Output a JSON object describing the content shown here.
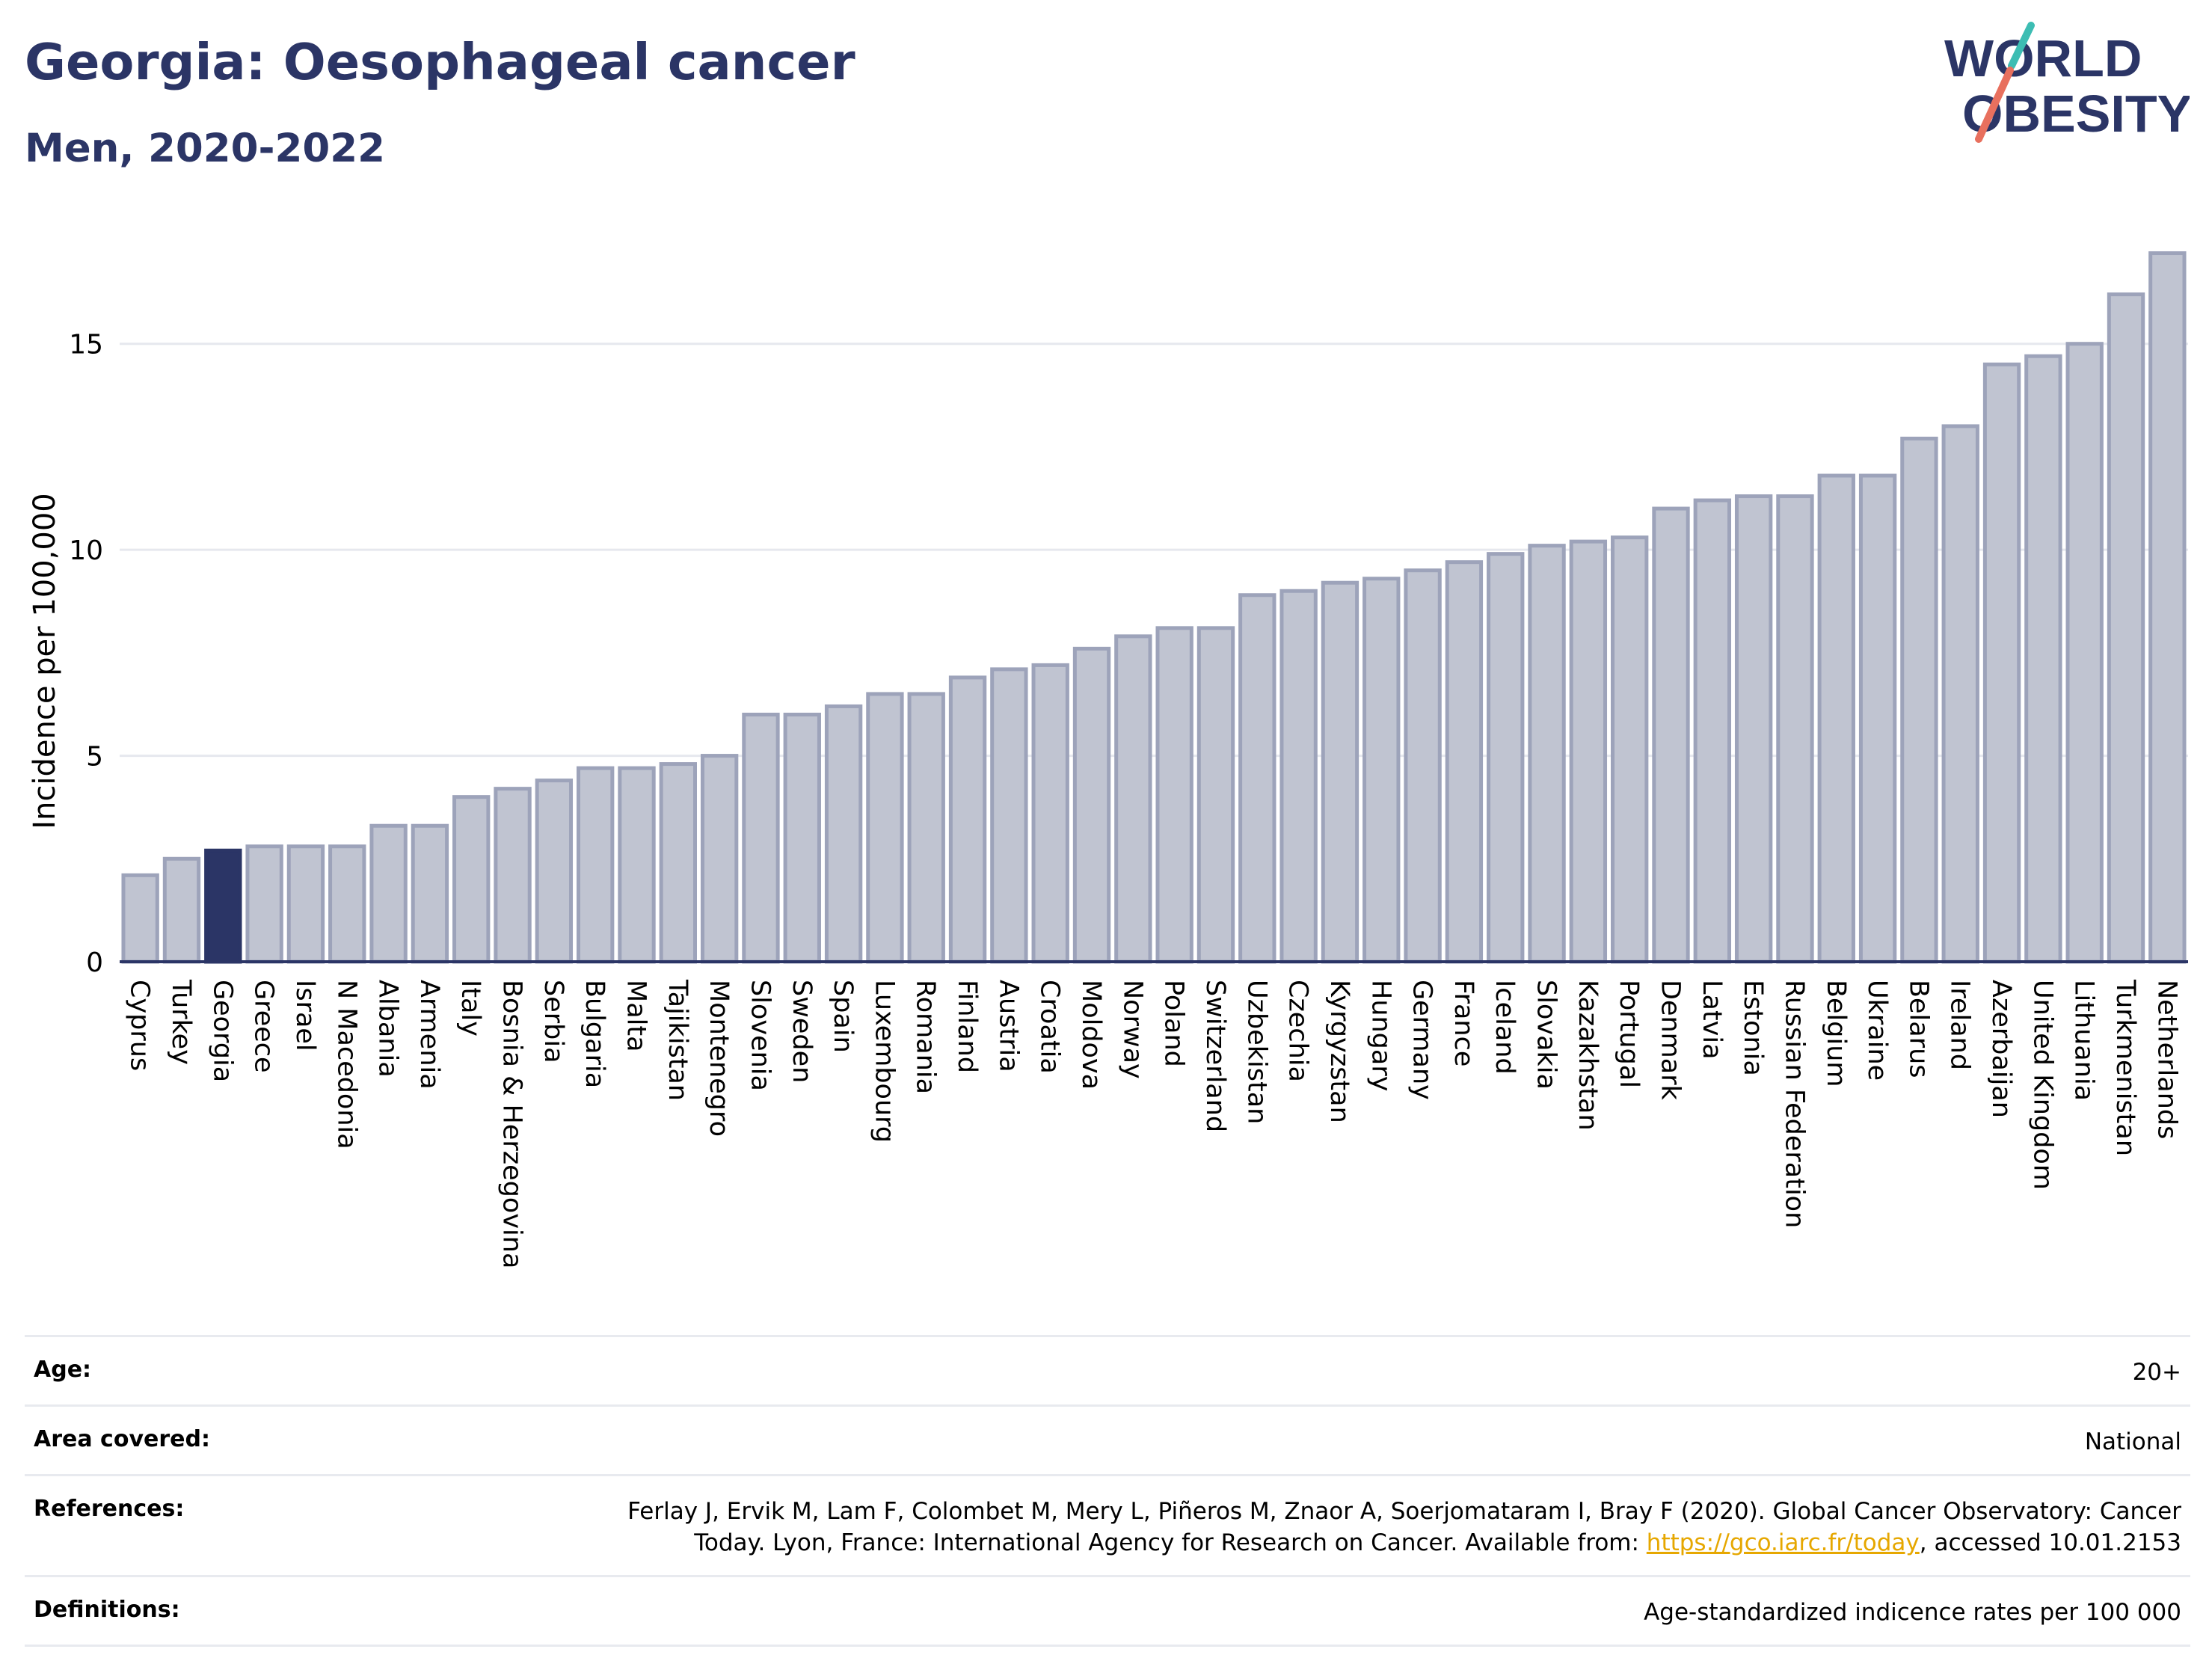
{
  "header": {
    "title": "Georgia: Oesophageal cancer",
    "subtitle": "Men, 2020-2022"
  },
  "logo": {
    "line1": "WORLD",
    "line2": "OBESITY"
  },
  "colors": {
    "highlight_bar": "#2b3566",
    "bar_fill": "#c0c4d1",
    "bar_stroke": "#9da3ba",
    "title_text": "#2b3566",
    "link": "#e6a700",
    "logo_teal": "#3dbdb3",
    "logo_coral": "#e8705e"
  },
  "chart_data": {
    "type": "bar",
    "title": "",
    "xlabel": "",
    "ylabel": "Incidence per 100,000",
    "ylim": [
      0,
      17.5
    ],
    "yticks": [
      0,
      5,
      10,
      15
    ],
    "grid": true,
    "highlight": "Georgia",
    "categories": [
      "Cyprus",
      "Turkey",
      "Georgia",
      "Greece",
      "Israel",
      "N Macedonia",
      "Albania",
      "Armenia",
      "Italy",
      "Bosnia & Herzegovina",
      "Serbia",
      "Bulgaria",
      "Malta",
      "Tajikistan",
      "Montenegro",
      "Slovenia",
      "Sweden",
      "Spain",
      "Luxembourg",
      "Romania",
      "Finland",
      "Austria",
      "Croatia",
      "Moldova",
      "Norway",
      "Poland",
      "Switzerland",
      "Uzbekistan",
      "Czechia",
      "Kyrgyzstan",
      "Hungary",
      "Germany",
      "France",
      "Iceland",
      "Slovakia",
      "Kazakhstan",
      "Portugal",
      "Denmark",
      "Latvia",
      "Estonia",
      "Russian Federation",
      "Belgium",
      "Ukraine",
      "Belarus",
      "Ireland",
      "Azerbaijan",
      "United Kingdom",
      "Lithuania",
      "Turkmenistan",
      "Netherlands"
    ],
    "values": [
      2.1,
      2.5,
      2.7,
      2.8,
      2.8,
      2.8,
      3.3,
      3.3,
      4.0,
      4.2,
      4.4,
      4.7,
      4.7,
      4.8,
      5.0,
      6.0,
      6.0,
      6.2,
      6.5,
      6.5,
      6.9,
      7.1,
      7.2,
      7.6,
      7.9,
      8.1,
      8.1,
      8.9,
      9.0,
      9.2,
      9.3,
      9.5,
      9.7,
      9.9,
      10.1,
      10.2,
      10.3,
      11.0,
      11.2,
      11.3,
      11.3,
      11.8,
      11.8,
      12.7,
      13.0,
      14.5,
      14.7,
      15.0,
      16.2,
      17.2
    ]
  },
  "details": {
    "age_label": "Age:",
    "age_value": "20+",
    "area_label": "Area covered:",
    "area_value": "National",
    "references_label": "References:",
    "references_line1": "Ferlay J, Ervik M, Lam F, Colombet M, Mery L, Piñeros M, Znaor A, Soerjomataram I, Bray F (2020). Global Cancer Observatory: Cancer",
    "references_line2_prefix": "Today. Lyon, France: International Agency for Research on Cancer. Available from: ",
    "references_link": "https://gco.iarc.fr/today",
    "references_line2_suffix": ", accessed 10.01.2153",
    "definitions_label": "Definitions:",
    "definitions_value": "Age-standardized indicence rates per 100 000"
  }
}
